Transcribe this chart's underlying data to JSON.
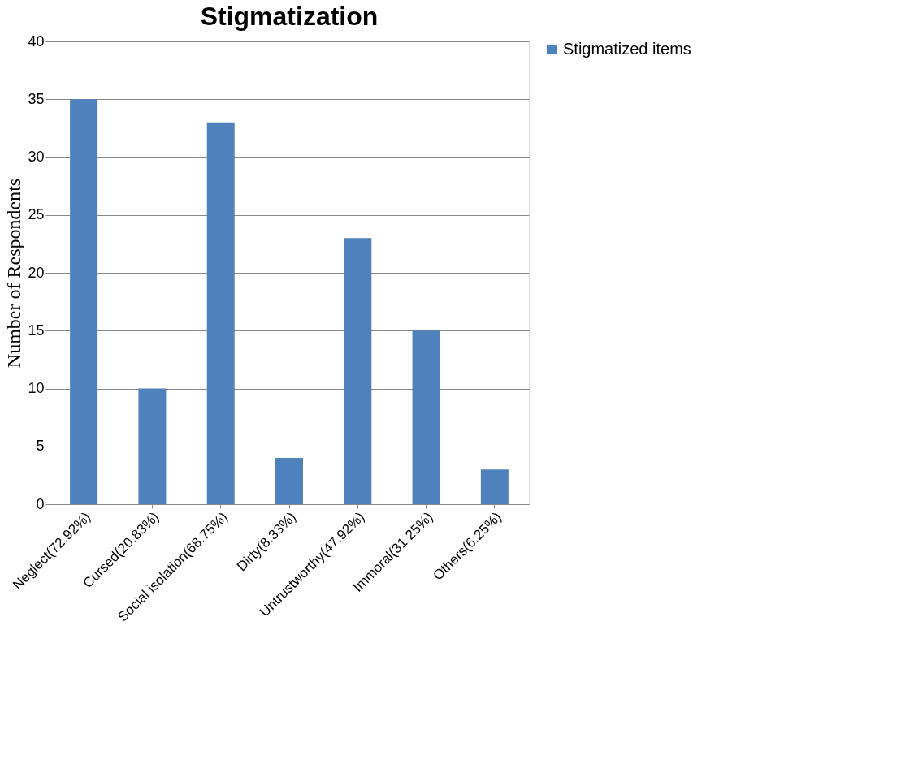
{
  "chart_data": {
    "type": "bar",
    "title": "Stigmatization",
    "ylabel": "Number of Respondents",
    "categories": [
      "Neglect(72.92%)",
      "Cursed(20.83%)",
      "Social isolation(68.75%)",
      "Dirty(8.33%)",
      "Untrustworthy(47.92%)",
      "Immoral(31.25%)",
      "Others(6.25%)"
    ],
    "series": [
      {
        "name": "Stigmatized items",
        "color": "#4f81bd",
        "values": [
          35,
          10,
          33,
          4,
          23,
          15,
          3
        ]
      }
    ],
    "ylim": [
      0,
      40
    ],
    "yticks": [
      0,
      5,
      10,
      15,
      20,
      25,
      30,
      35,
      40
    ],
    "grid": "y",
    "legend": "right"
  }
}
